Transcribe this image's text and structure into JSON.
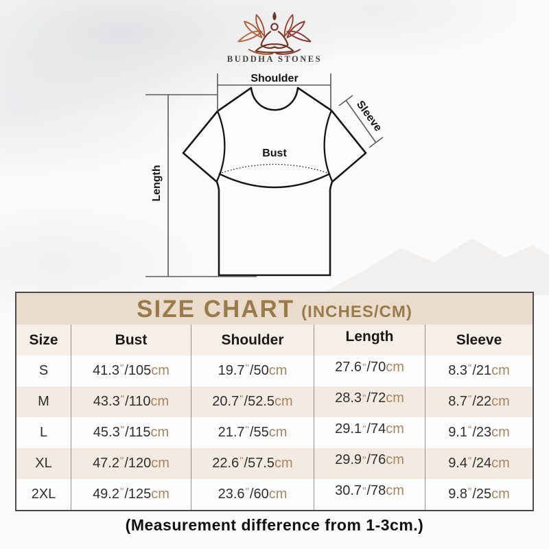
{
  "brand": {
    "name": "BUDDHA STONES",
    "logo_icon": "lotus-meditation-logo"
  },
  "diagram": {
    "shoulder_label": "Shoulder",
    "sleeve_label": "Sleeve",
    "bust_label": "Bust",
    "length_label": "Length"
  },
  "size_chart": {
    "title": "SIZE CHART",
    "subtitle": "(INCHES/CM)",
    "columns": [
      "Size",
      "Bust",
      "Shoulder",
      "Length",
      "Sleeve"
    ],
    "units": {
      "inch_mark": "\"",
      "separator": "/",
      "cm_label": "cm"
    },
    "rows": [
      {
        "size": "S",
        "bust": {
          "in": "41.3",
          "cm": "105"
        },
        "shoulder": {
          "in": "19.7",
          "cm": "50"
        },
        "length": {
          "in": "27.6",
          "cm": "70"
        },
        "sleeve": {
          "in": "8.3",
          "cm": "21"
        }
      },
      {
        "size": "M",
        "bust": {
          "in": "43.3",
          "cm": "110"
        },
        "shoulder": {
          "in": "20.7",
          "cm": "52.5"
        },
        "length": {
          "in": "28.3",
          "cm": "72"
        },
        "sleeve": {
          "in": "8.7",
          "cm": "22"
        }
      },
      {
        "size": "L",
        "bust": {
          "in": "45.3",
          "cm": "115"
        },
        "shoulder": {
          "in": "21.7",
          "cm": "55"
        },
        "length": {
          "in": "29.1",
          "cm": "74"
        },
        "sleeve": {
          "in": "9.1",
          "cm": "23"
        }
      },
      {
        "size": "XL",
        "bust": {
          "in": "47.2",
          "cm": "120"
        },
        "shoulder": {
          "in": "22.6",
          "cm": "57.5"
        },
        "length": {
          "in": "29.9",
          "cm": "76"
        },
        "sleeve": {
          "in": "9.4",
          "cm": "24"
        }
      },
      {
        "size": "2XL",
        "bust": {
          "in": "49.2",
          "cm": "125"
        },
        "shoulder": {
          "in": "23.6",
          "cm": "60"
        },
        "length": {
          "in": "30.7",
          "cm": "78"
        },
        "sleeve": {
          "in": "9.8",
          "cm": "25"
        }
      }
    ],
    "footnote": "(Measurement difference from 1-3cm.)"
  },
  "colors": {
    "title_gold": "#9a7a48",
    "band_bg": "#e9dccd",
    "header_bg": "#f6efe8",
    "row_alt_bg": "#f3eae2",
    "unit_tan": "#a8855e",
    "table_border": "#4a4a4a",
    "logo_brown": "#b06a3e",
    "logo_maroon": "#8a3431"
  },
  "chart_data": {
    "type": "table",
    "title": "SIZE CHART (INCHES/CM)",
    "columns": [
      "Size",
      "Bust",
      "Shoulder",
      "Length",
      "Sleeve"
    ],
    "rows": [
      [
        "S",
        "41.3\"/105cm",
        "19.7\"/50cm",
        "27.6\"/70cm",
        "8.3\"/21cm"
      ],
      [
        "M",
        "43.3\"/110cm",
        "20.7\"/52.5cm",
        "28.3\"/72cm",
        "8.7\"/22cm"
      ],
      [
        "L",
        "45.3\"/115cm",
        "21.7\"/55cm",
        "29.1\"/74cm",
        "9.1\"/23cm"
      ],
      [
        "XL",
        "47.2\"/120cm",
        "22.6\"/57.5cm",
        "29.9\"/76cm",
        "9.4\"/24cm"
      ],
      [
        "2XL",
        "49.2\"/125cm",
        "23.6\"/60cm",
        "30.7\"/78cm",
        "9.8\"/25cm"
      ]
    ],
    "footnote": "(Measurement difference from 1-3cm.)"
  }
}
